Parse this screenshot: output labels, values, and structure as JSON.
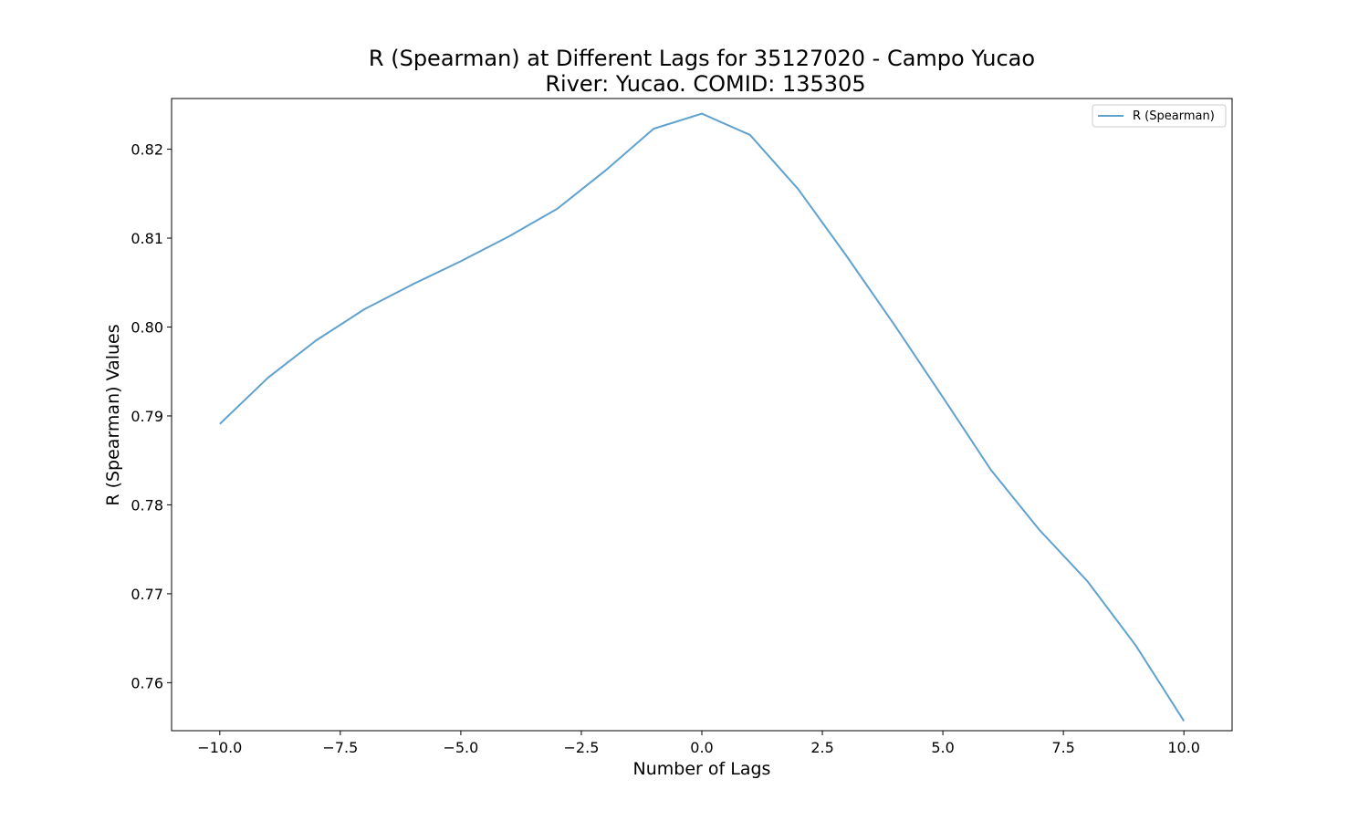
{
  "chart_data": {
    "type": "line",
    "title": "R (Spearman) at Different Lags for 35127020 - Campo Yucao",
    "subtitle": "River: Yucao. COMID: 135305",
    "xlabel": "Number of Lags",
    "ylabel": "R (Spearman) Values",
    "xlim": [
      -11,
      11
    ],
    "ylim": [
      0.7546,
      0.8257
    ],
    "xticks": [
      -10.0,
      -7.5,
      -5.0,
      -2.5,
      0.0,
      2.5,
      5.0,
      7.5,
      10.0
    ],
    "xtick_labels": [
      "−10.0",
      "−7.5",
      "−5.0",
      "−2.5",
      "0.0",
      "2.5",
      "5.0",
      "7.5",
      "10.0"
    ],
    "yticks": [
      0.76,
      0.77,
      0.78,
      0.79,
      0.8,
      0.81,
      0.82
    ],
    "ytick_labels": [
      "0.76",
      "0.77",
      "0.78",
      "0.79",
      "0.80",
      "0.81",
      "0.82"
    ],
    "grid": false,
    "legend_position": "top-right",
    "x": [
      -10,
      -9,
      -8,
      -7,
      -6,
      -5,
      -4,
      -3,
      -2,
      -1,
      0,
      1,
      2,
      3,
      4,
      5,
      6,
      7,
      8,
      9,
      10
    ],
    "series": [
      {
        "name": "R (Spearman)",
        "color": "#5fa2d0",
        "values": [
          0.7891,
          0.7943,
          0.7985,
          0.802,
          0.8048,
          0.8074,
          0.8102,
          0.8133,
          0.8176,
          0.8223,
          0.824,
          0.8216,
          0.8155,
          0.808,
          0.8002,
          0.7921,
          0.7839,
          0.7772,
          0.7714,
          0.7642,
          0.7557
        ]
      }
    ]
  }
}
